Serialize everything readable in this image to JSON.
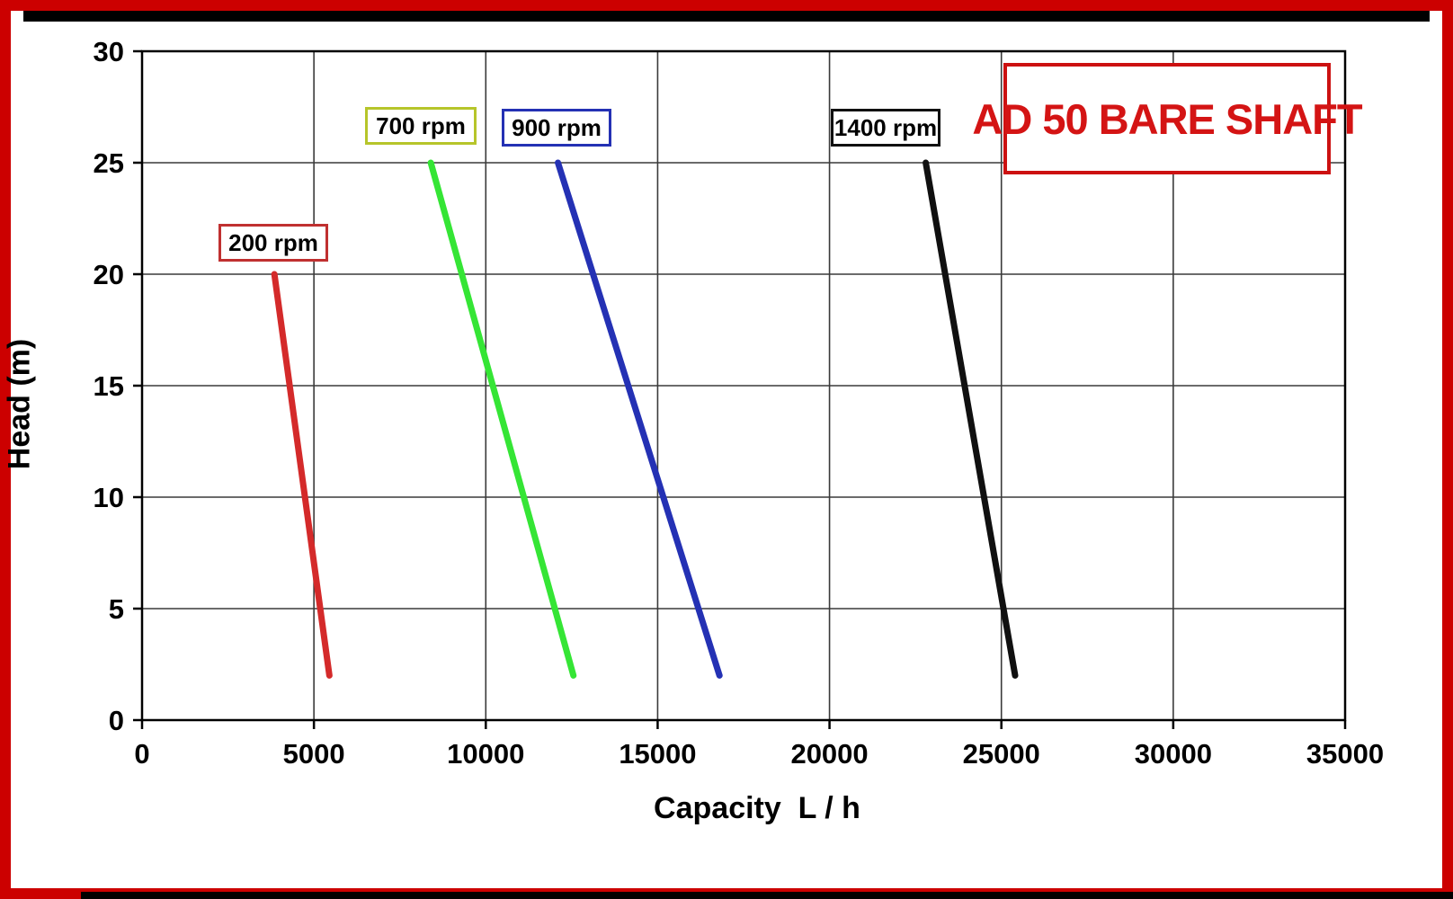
{
  "frame": {
    "border_color": "#cc0000",
    "top_strip_color": "#000000"
  },
  "chart_data": {
    "type": "line",
    "title": "AD 50 BARE SHAFT",
    "xlabel": "Capacity  L / h",
    "ylabel": "Head (m)",
    "xlim": [
      0,
      35000
    ],
    "ylim": [
      0,
      30
    ],
    "xticks": [
      0,
      5000,
      10000,
      15000,
      20000,
      25000,
      30000,
      35000
    ],
    "yticks": [
      0,
      5,
      10,
      15,
      20,
      25,
      30
    ],
    "grid": true,
    "legend_position": "inline-labels",
    "series": [
      {
        "name": "200 rpm",
        "color": "#d42a2a",
        "label_box_color": "#c03030",
        "points": [
          [
            3850,
            20
          ],
          [
            5450,
            2
          ]
        ]
      },
      {
        "name": "700 rpm",
        "color": "#35e535",
        "label_box_color": "#b6c52a",
        "points": [
          [
            8400,
            25
          ],
          [
            12550,
            2
          ]
        ]
      },
      {
        "name": "900 rpm",
        "color": "#2431b4",
        "label_box_color": "#2431b4",
        "points": [
          [
            12100,
            25
          ],
          [
            16800,
            2
          ]
        ]
      },
      {
        "name": "1400 rpm",
        "color": "#101010",
        "label_box_color": "#101010",
        "points": [
          [
            22800,
            25
          ],
          [
            25400,
            2
          ]
        ]
      }
    ]
  }
}
